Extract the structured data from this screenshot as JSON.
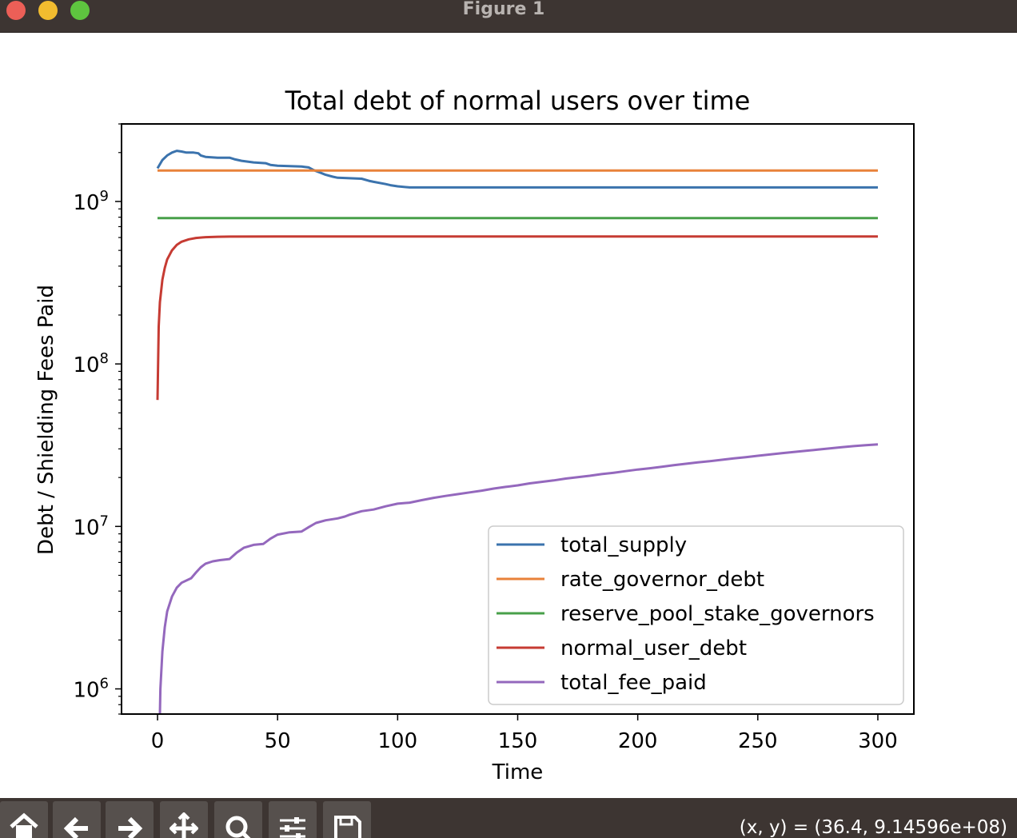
{
  "window": {
    "title": "Figure 1"
  },
  "toolbar": {
    "buttons": [
      {
        "name": "home-icon"
      },
      {
        "name": "back-icon"
      },
      {
        "name": "forward-icon"
      },
      {
        "name": "pan-icon"
      },
      {
        "name": "zoom-icon"
      },
      {
        "name": "configure-subplots-icon"
      },
      {
        "name": "save-icon"
      }
    ],
    "coordinates": "(x, y) = (36.4, 9.14596e+08)"
  },
  "chart_data": {
    "type": "line",
    "title": "Total debt of normal users over time",
    "xlabel": "Time",
    "ylabel": "Debt / Shielding Fees Paid",
    "yscale": "log",
    "xlim": [
      -15,
      315
    ],
    "ylim": [
      700000,
      3000000000
    ],
    "x_ticks": [
      0,
      50,
      100,
      150,
      200,
      250,
      300
    ],
    "y_ticks": [
      {
        "value": 1000000,
        "base": "10",
        "exp": "6"
      },
      {
        "value": 10000000,
        "base": "10",
        "exp": "7"
      },
      {
        "value": 100000000,
        "base": "10",
        "exp": "8"
      },
      {
        "value": 1000000000,
        "base": "10",
        "exp": "9"
      }
    ],
    "grid": false,
    "legend_position": "lower right",
    "series": [
      {
        "name": "total_supply",
        "color": "#3b73ad",
        "x": [
          0,
          2,
          4,
          6,
          8,
          10,
          12,
          15,
          17,
          18,
          20,
          25,
          30,
          32,
          35,
          40,
          45,
          47,
          50,
          55,
          60,
          63,
          65,
          68,
          70,
          73,
          75,
          80,
          85,
          88,
          90,
          95,
          97,
          100,
          105,
          110,
          150,
          200,
          250,
          300
        ],
        "y": [
          1600000000.0,
          1800000000.0,
          1920000000.0,
          2000000000.0,
          2050000000.0,
          2030000000.0,
          2000000000.0,
          2000000000.0,
          1980000000.0,
          1920000000.0,
          1880000000.0,
          1860000000.0,
          1860000000.0,
          1820000000.0,
          1780000000.0,
          1740000000.0,
          1720000000.0,
          1680000000.0,
          1660000000.0,
          1650000000.0,
          1640000000.0,
          1620000000.0,
          1560000000.0,
          1500000000.0,
          1460000000.0,
          1420000000.0,
          1400000000.0,
          1390000000.0,
          1380000000.0,
          1340000000.0,
          1320000000.0,
          1280000000.0,
          1260000000.0,
          1240000000.0,
          1220000000.0,
          1220000000.0,
          1220000000.0,
          1220000000.0,
          1220000000.0,
          1220000000.0
        ]
      },
      {
        "name": "rate_governor_debt",
        "color": "#e8823a",
        "x": [
          0,
          300
        ],
        "y": [
          1550000000.0,
          1550000000.0
        ]
      },
      {
        "name": "reserve_pool_stake_governors",
        "color": "#48a04a",
        "x": [
          0,
          300
        ],
        "y": [
          790000000.0,
          790000000.0
        ]
      },
      {
        "name": "normal_user_debt",
        "color": "#c63b33",
        "x": [
          0,
          0.5,
          1,
          2,
          3,
          4,
          6,
          8,
          10,
          13,
          16,
          20,
          25,
          30,
          50,
          100,
          150,
          200,
          250,
          300
        ],
        "y": [
          60000000.0,
          170000000.0,
          240000000.0,
          330000000.0,
          390000000.0,
          440000000.0,
          500000000.0,
          540000000.0,
          565000000.0,
          585000000.0,
          596000000.0,
          603000000.0,
          606000000.0,
          608000000.0,
          609000000.0,
          609000000.0,
          609000000.0,
          609000000.0,
          609000000.0,
          609000000.0
        ]
      },
      {
        "name": "total_fee_paid",
        "color": "#9468bd",
        "x": [
          1,
          1.2,
          2,
          3,
          4,
          6,
          8,
          10,
          14,
          16,
          18,
          20,
          23,
          26,
          30,
          33,
          36,
          40,
          44,
          47,
          50,
          55,
          60,
          63,
          66,
          70,
          75,
          78,
          80,
          85,
          90,
          95,
          100,
          105,
          110,
          115,
          120,
          125,
          130,
          135,
          140,
          145,
          150,
          155,
          160,
          165,
          170,
          175,
          180,
          185,
          190,
          195,
          200,
          205,
          210,
          215,
          220,
          225,
          230,
          235,
          240,
          245,
          250,
          255,
          260,
          265,
          270,
          275,
          280,
          285,
          290,
          295,
          300
        ],
        "y": [
          700000.0,
          1000000.0,
          1700000.0,
          2400000.0,
          3000000.0,
          3700000.0,
          4200000.0,
          4500000.0,
          4800000.0,
          5200000.0,
          5600000.0,
          5900000.0,
          6100000.0,
          6200000.0,
          6300000.0,
          6900000.0,
          7400000.0,
          7700000.0,
          7800000.0,
          8400000.0,
          8900000.0,
          9200000.0,
          9300000.0,
          9900000.0,
          10500000.0,
          10900000.0,
          11200000.0,
          11500000.0,
          11800000.0,
          12400000.0,
          12700000.0,
          13300000.0,
          13800000.0,
          14000000.0,
          14500000.0,
          15000000.0,
          15400000.0,
          15800000.0,
          16200000.0,
          16600000.0,
          17100000.0,
          17500000.0,
          17900000.0,
          18400000.0,
          18800000.0,
          19200000.0,
          19700000.0,
          20100000.0,
          20500000.0,
          21000000.0,
          21400000.0,
          21900000.0,
          22400000.0,
          22800000.0,
          23300000.0,
          23800000.0,
          24300000.0,
          24800000.0,
          25200000.0,
          25700000.0,
          26200000.0,
          26700000.0,
          27200000.0,
          27700000.0,
          28200000.0,
          28700000.0,
          29200000.0,
          29700000.0,
          30200000.0,
          30700000.0,
          31200000.0,
          31600000.0,
          32000000.0
        ]
      }
    ]
  }
}
